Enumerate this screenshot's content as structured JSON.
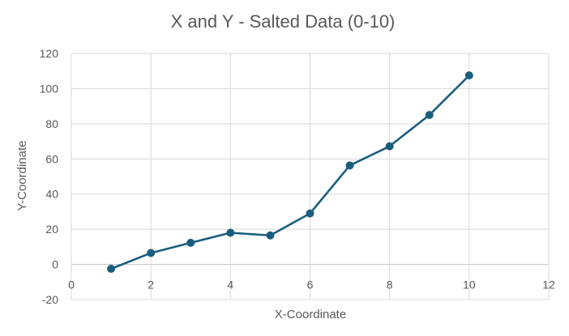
{
  "chart_data": {
    "type": "scatter",
    "title": "X and Y - Salted Data (0-10)",
    "xlabel": "X-Coordinate",
    "ylabel": "Y-Coordinate",
    "xlim": [
      0,
      12
    ],
    "ylim": [
      -20,
      120
    ],
    "xticks": [
      0,
      2,
      4,
      6,
      8,
      10,
      12
    ],
    "yticks": [
      -20,
      0,
      20,
      40,
      60,
      80,
      100,
      120
    ],
    "grid": true,
    "legend": "none",
    "series": [
      {
        "color": "#1a5e7e",
        "marker": "circle",
        "line": true,
        "x": [
          1,
          2,
          3,
          4,
          5,
          6,
          7,
          8,
          9,
          10
        ],
        "y": [
          -2.5,
          6.5,
          12.3,
          18,
          16.5,
          29,
          56.3,
          67.2,
          85,
          107.5
        ]
      }
    ]
  }
}
